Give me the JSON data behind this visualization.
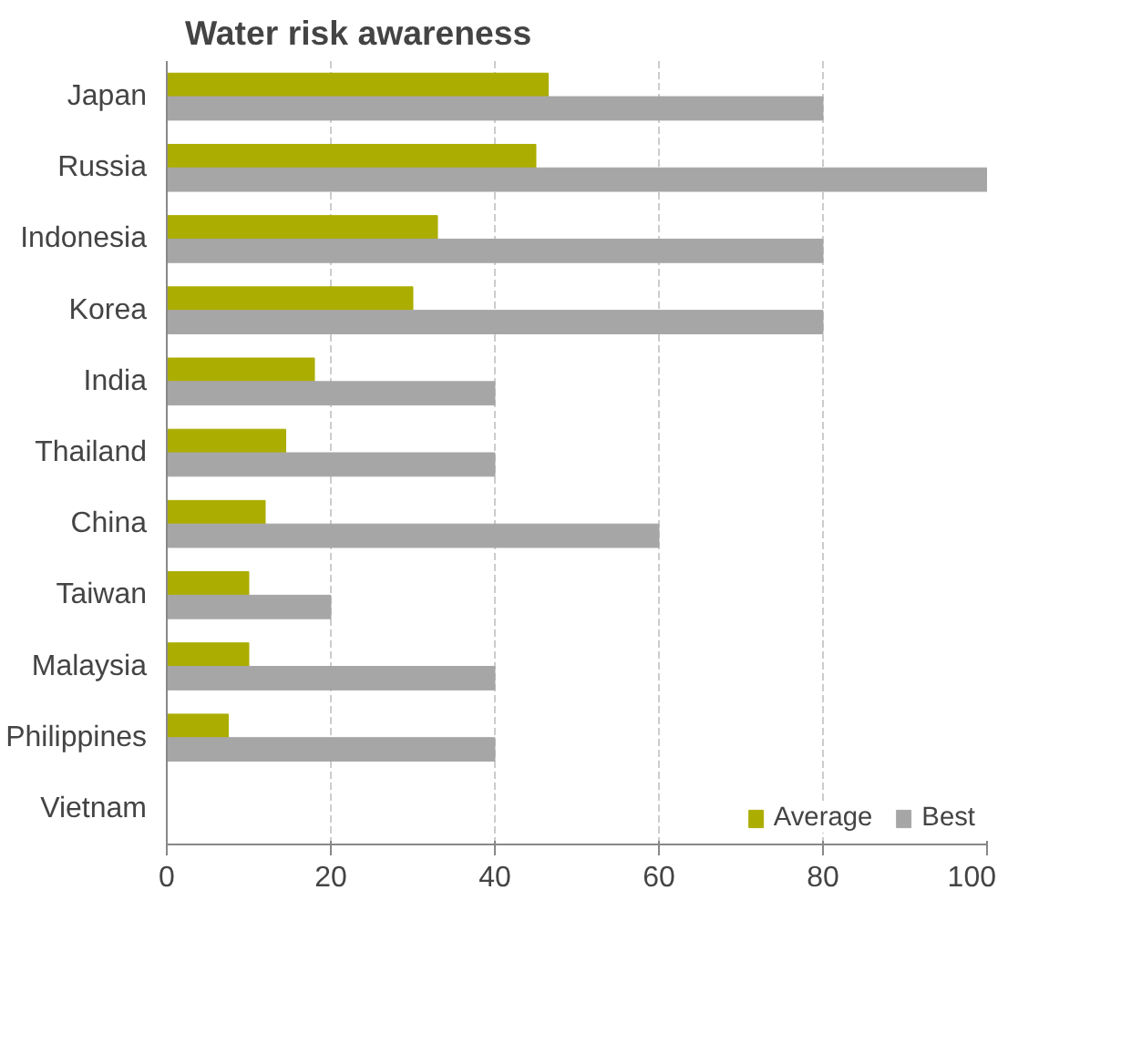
{
  "chart_data": {
    "type": "bar",
    "orientation": "horizontal",
    "title": "Water risk awareness",
    "categories": [
      "Japan",
      "Russia",
      "Indonesia",
      "Korea",
      "India",
      "Thailand",
      "China",
      "Taiwan",
      "Malaysia",
      "Philippines",
      "Vietnam"
    ],
    "series": [
      {
        "name": "Average",
        "color": "#abad00",
        "values": [
          46.5,
          45,
          33,
          30,
          18,
          14.5,
          12,
          10,
          10,
          7.5,
          0
        ]
      },
      {
        "name": "Best",
        "color": "#a6a6a6",
        "values": [
          80,
          100,
          80,
          80,
          40,
          40,
          60,
          20,
          40,
          40,
          0
        ]
      }
    ],
    "xlim": [
      0,
      100
    ],
    "xticks": [
      0,
      20,
      40,
      60,
      80,
      100
    ],
    "grid": "x",
    "legend": "bottom right"
  }
}
